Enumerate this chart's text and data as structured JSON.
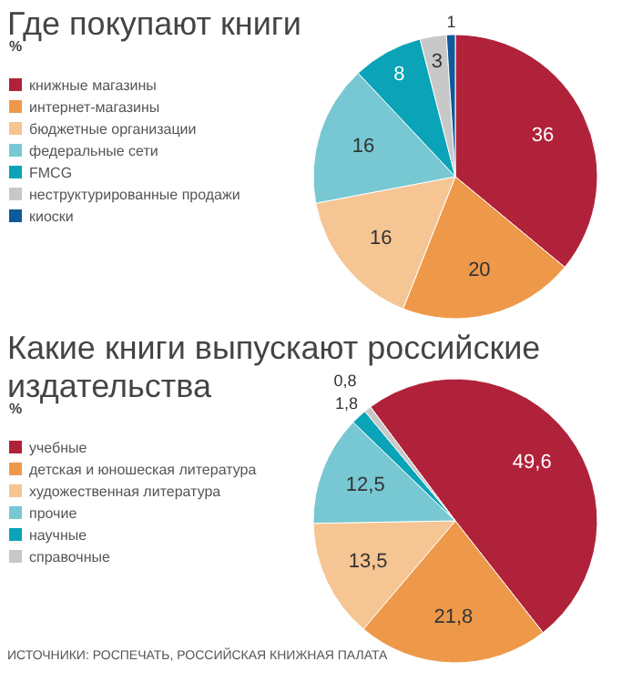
{
  "chart_data": [
    {
      "type": "pie",
      "title": "Где покупают книги",
      "subtitle": "%",
      "categories": [
        "книжные магазины",
        "интернет-магазины",
        "бюджетные организации",
        "федеральные сети",
        "FMCG",
        "неструктурированные продажи",
        "киоски"
      ],
      "values": [
        36,
        20,
        16,
        16,
        8,
        3,
        1
      ],
      "colors": [
        "#b0223a",
        "#ee994a",
        "#f5c593",
        "#77c8d2",
        "#0aa3b8",
        "#c8c8c8",
        "#0e5a9a"
      ],
      "data_labels": true,
      "legend": "left"
    },
    {
      "type": "pie",
      "title": "Какие книги выпускают российские издательства",
      "subtitle": "%",
      "categories": [
        "учебные",
        "детская и юношеская литература",
        "художественная литература",
        "прочие",
        "научные",
        "справочные"
      ],
      "values": [
        49.6,
        21.8,
        13.5,
        12.5,
        1.8,
        0.8
      ],
      "colors": [
        "#b0223a",
        "#ee994a",
        "#f5c593",
        "#77c8d2",
        "#0aa3b8",
        "#c8c8c8"
      ],
      "value_labels": [
        "49,6",
        "21,8",
        "13,5",
        "12,5",
        "1,8",
        "0,8"
      ],
      "legend": "left",
      "annotations": [
        "ИСТОЧНИКИ: РОСПЕЧАТЬ, РОССИЙСКАЯ КНИЖНАЯ ПАЛАТА"
      ]
    }
  ]
}
